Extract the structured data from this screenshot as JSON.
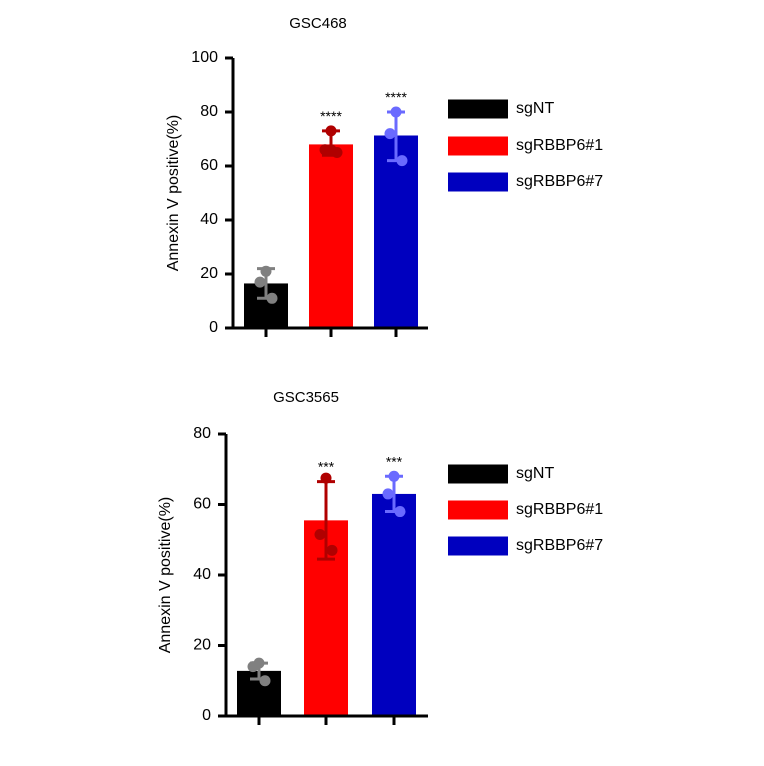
{
  "chart_data": [
    {
      "type": "bar",
      "title": "GSC468",
      "xlabel": "",
      "ylabel": "Annexin V positive(%)",
      "ylim": [
        0,
        100
      ],
      "yticks": [
        0,
        20,
        40,
        60,
        80,
        100
      ],
      "grid": false,
      "legend_position": "right",
      "categories": [
        "sgNT",
        "sgRBBP6#1",
        "sgRBBP6#7"
      ],
      "series": [
        {
          "name": "sgNT",
          "mean": 16.5,
          "sd_low": 11.0,
          "sd_high": 22.0,
          "points": [
            21,
            17,
            11
          ],
          "color": "#000000",
          "point_color": "#808080",
          "significance": ""
        },
        {
          "name": "sgRBBP6#1",
          "mean": 68.0,
          "sd_low": 64.0,
          "sd_high": 73.0,
          "points": [
            73,
            66,
            65,
            66
          ],
          "color": "#ff0000",
          "point_color": "#b00000",
          "significance": "****"
        },
        {
          "name": "sgRBBP6#7",
          "mean": 71.3,
          "sd_low": 62.0,
          "sd_high": 80.0,
          "points": [
            80,
            72,
            62
          ],
          "color": "#0000bf",
          "point_color": "#6a6aff",
          "significance": "****"
        }
      ]
    },
    {
      "type": "bar",
      "title": "GSC3565",
      "xlabel": "",
      "ylabel": "Annexin V positive(%)",
      "ylim": [
        0,
        80
      ],
      "yticks": [
        0,
        20,
        40,
        60,
        80
      ],
      "grid": false,
      "legend_position": "right",
      "categories": [
        "sgNT",
        "sgRBBP6#1",
        "sgRBBP6#7"
      ],
      "series": [
        {
          "name": "sgNT",
          "mean": 12.8,
          "sd_low": 10.5,
          "sd_high": 15.0,
          "points": [
            15,
            14,
            10
          ],
          "color": "#000000",
          "point_color": "#808080",
          "significance": ""
        },
        {
          "name": "sgRBBP6#1",
          "mean": 55.5,
          "sd_low": 44.5,
          "sd_high": 66.5,
          "points": [
            67.5,
            51.5,
            47
          ],
          "color": "#ff0000",
          "point_color": "#b00000",
          "significance": "***"
        },
        {
          "name": "sgRBBP6#7",
          "mean": 63.0,
          "sd_low": 58.0,
          "sd_high": 68.0,
          "points": [
            68,
            63,
            58
          ],
          "color": "#0000bf",
          "point_color": "#6a6aff",
          "significance": "***"
        }
      ]
    }
  ]
}
